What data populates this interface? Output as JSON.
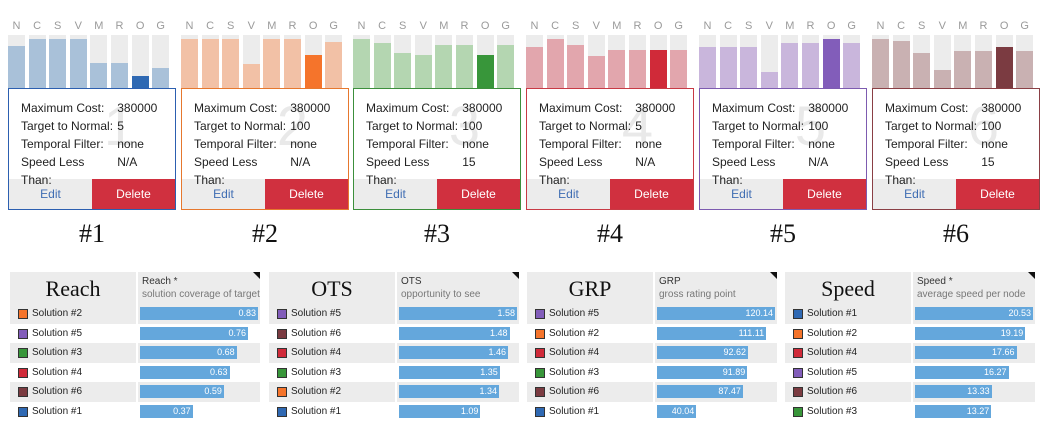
{
  "letters": [
    "N",
    "C",
    "S",
    "V",
    "M",
    "R",
    "O",
    "G"
  ],
  "field_labels": {
    "max_cost": "Maximum Cost:",
    "target": "Target to Normal:",
    "temporal": "Temporal Filter:",
    "speed": "Speed Less Than:"
  },
  "buttons": {
    "edit": "Edit",
    "delete": "Delete"
  },
  "solutions": [
    {
      "caption": "#1",
      "bignum": "1",
      "border": "#2c5fb0",
      "color_light": "#a9c1d9",
      "color_dark": "#2f69b3",
      "bars": [
        0.79,
        0.92,
        0.92,
        0.92,
        0.47,
        0.47,
        0.23,
        0.38
      ],
      "values": {
        "max_cost": "380000",
        "target": "5",
        "temporal": "none",
        "speed": "N/A"
      }
    },
    {
      "caption": "#2",
      "bignum": "2",
      "border": "#e6782e",
      "color_light": "#f2c1a6",
      "color_dark": "#f5742b",
      "bars": [
        0.92,
        0.92,
        0.92,
        0.45,
        0.92,
        0.92,
        0.62,
        0.87
      ],
      "values": {
        "max_cost": "380000",
        "target": "100",
        "temporal": "none",
        "speed": "N/A"
      }
    },
    {
      "caption": "#3",
      "bignum": "3",
      "border": "#3c8f3c",
      "color_light": "#b4d6b1",
      "color_dark": "#38963a",
      "bars": [
        0.92,
        0.85,
        0.66,
        0.62,
        0.81,
        0.81,
        0.62,
        0.81
      ],
      "values": {
        "max_cost": "380000",
        "target": "100",
        "temporal": "none",
        "speed": "15"
      }
    },
    {
      "caption": "#4",
      "bignum": "4",
      "border": "#c83a45",
      "color_light": "#e2a6ad",
      "color_dark": "#d02a39",
      "bars": [
        0.77,
        0.92,
        0.81,
        0.6,
        0.72,
        0.72,
        0.72,
        0.72
      ],
      "values": {
        "max_cost": "380000",
        "target": "5",
        "temporal": "none",
        "speed": "N/A"
      }
    },
    {
      "caption": "#5",
      "bignum": "5",
      "border": "#7d5bb0",
      "color_light": "#c9b6dc",
      "color_dark": "#825dba",
      "bars": [
        0.77,
        0.77,
        0.77,
        0.3,
        0.85,
        0.85,
        0.92,
        0.85
      ],
      "values": {
        "max_cost": "380000",
        "target": "100",
        "temporal": "none",
        "speed": "N/A"
      }
    },
    {
      "caption": "#6",
      "bignum": "6",
      "border": "#8a3f45",
      "color_light": "#c9b1b2",
      "color_dark": "#7b3b41",
      "bars": [
        0.92,
        0.88,
        0.66,
        0.34,
        0.7,
        0.7,
        0.77,
        0.7
      ],
      "values": {
        "max_cost": "380000",
        "target": "100",
        "temporal": "none",
        "speed": "15"
      }
    }
  ],
  "rankings": [
    {
      "title": "Reach",
      "metric": "Reach *",
      "desc": "solution coverage of target",
      "max": 0.83,
      "rows": [
        {
          "label": "Solution #2",
          "value": 0.83,
          "display": "0.83",
          "swatch": "#f5742b"
        },
        {
          "label": "Solution #5",
          "value": 0.76,
          "display": "0.76",
          "swatch": "#825dba"
        },
        {
          "label": "Solution #3",
          "value": 0.68,
          "display": "0.68",
          "swatch": "#38963a"
        },
        {
          "label": "Solution #4",
          "value": 0.63,
          "display": "0.63",
          "swatch": "#d02a39"
        },
        {
          "label": "Solution #6",
          "value": 0.59,
          "display": "0.59",
          "swatch": "#7b3b41"
        },
        {
          "label": "Solution #1",
          "value": 0.37,
          "display": "0.37",
          "swatch": "#2f69b3"
        }
      ]
    },
    {
      "title": "OTS",
      "metric": "OTS",
      "desc": "opportunity to see",
      "max": 1.58,
      "rows": [
        {
          "label": "Solution #5",
          "value": 1.58,
          "display": "1.58",
          "swatch": "#825dba"
        },
        {
          "label": "Solution #6",
          "value": 1.48,
          "display": "1.48",
          "swatch": "#7b3b41"
        },
        {
          "label": "Solution #4",
          "value": 1.46,
          "display": "1.46",
          "swatch": "#d02a39"
        },
        {
          "label": "Solution #3",
          "value": 1.35,
          "display": "1.35",
          "swatch": "#38963a"
        },
        {
          "label": "Solution #2",
          "value": 1.34,
          "display": "1.34",
          "swatch": "#f5742b"
        },
        {
          "label": "Solution #1",
          "value": 1.09,
          "display": "1.09",
          "swatch": "#2f69b3"
        }
      ]
    },
    {
      "title": "GRP",
      "metric": "GRP",
      "desc": "gross rating point",
      "max": 120.14,
      "rows": [
        {
          "label": "Solution #5",
          "value": 120.14,
          "display": "120.14",
          "swatch": "#825dba"
        },
        {
          "label": "Solution #2",
          "value": 111.11,
          "display": "111.11",
          "swatch": "#f5742b"
        },
        {
          "label": "Solution #4",
          "value": 92.62,
          "display": "92.62",
          "swatch": "#d02a39"
        },
        {
          "label": "Solution #3",
          "value": 91.89,
          "display": "91.89",
          "swatch": "#38963a"
        },
        {
          "label": "Solution #6",
          "value": 87.47,
          "display": "87.47",
          "swatch": "#7b3b41"
        },
        {
          "label": "Solution #1",
          "value": 40.04,
          "display": "40.04",
          "swatch": "#2f69b3"
        }
      ]
    },
    {
      "title": "Speed",
      "metric": "Speed *",
      "desc": "average speed per node",
      "max": 20.53,
      "rows": [
        {
          "label": "Solution #1",
          "value": 20.53,
          "display": "20.53",
          "swatch": "#2f69b3"
        },
        {
          "label": "Solution #2",
          "value": 19.19,
          "display": "19.19",
          "swatch": "#f5742b"
        },
        {
          "label": "Solution #4",
          "value": 17.66,
          "display": "17.66",
          "swatch": "#d02a39"
        },
        {
          "label": "Solution #5",
          "value": 16.27,
          "display": "16.27",
          "swatch": "#825dba"
        },
        {
          "label": "Solution #6",
          "value": 13.33,
          "display": "13.33",
          "swatch": "#7b3b41"
        },
        {
          "label": "Solution #3",
          "value": 13.27,
          "display": "13.27",
          "swatch": "#38963a"
        }
      ]
    }
  ]
}
